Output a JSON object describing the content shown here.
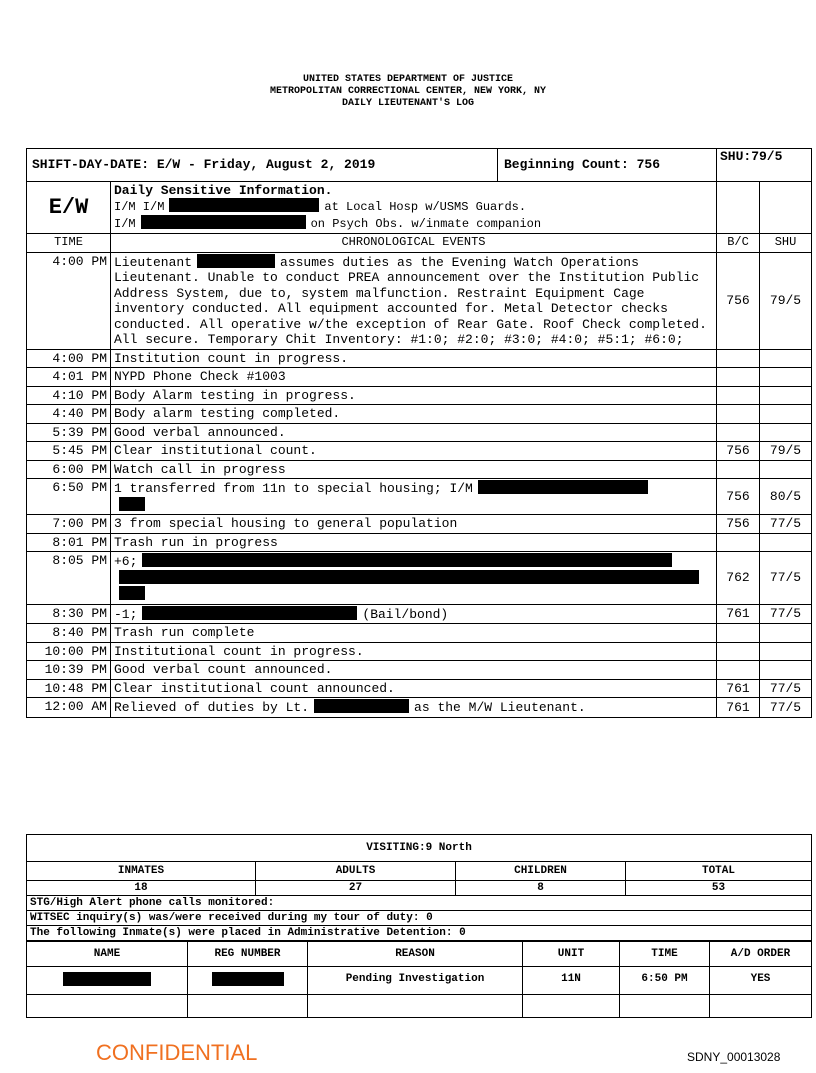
{
  "header": {
    "lines": [
      "UNITED STATES DEPARTMENT OF JUSTICE",
      "METROPOLITAN CORRECTIONAL CENTER, NEW YORK, NY",
      "DAILY LIEUTENANT'S LOG"
    ]
  },
  "log": {
    "shift_date": "SHIFT-DAY-DATE: E/W - Friday, August 2, 2019",
    "beginning_count": "Beginning Count: 756",
    "shu": "SHU:79/5",
    "sensitive": {
      "code": "E/W",
      "title": "Daily Sensitive Information.",
      "lines": [
        [
          "I/M I/M",
          "at Local Hosp w/USMS Guards."
        ],
        [
          "I/M",
          "on Psych Obs. w/inmate companion"
        ]
      ]
    },
    "columns": [
      "TIME",
      "CHRONOLOGICAL EVENTS",
      "B/C",
      "SHU"
    ],
    "entries": [
      {
        "time": "4:00 PM",
        "event": [
          "Lieutenant",
          "assumes duties as the Evening Watch Operations Lieutenant. Unable to conduct PREA announcement over the Institution Public Address System, due to, system malfunction. Restraint Equipment Cage inventory conducted. All equipment accounted for. Metal Detector checks conducted. All operative w/the exception of Rear Gate. Roof Check completed. All secure. Temporary Chit Inventory: #1:0; #2:0; #3:0; #4:0; #5:1; #6:0;"
        ],
        "bc": 756,
        "shu": "79/5"
      },
      {
        "time": "4:00 PM",
        "event": [
          "Institution count in progress."
        ]
      },
      {
        "time": "4:01 PM",
        "event": [
          "NYPD Phone Check #1003"
        ]
      },
      {
        "time": "4:10 PM",
        "event": [
          "Body Alarm testing in progress."
        ]
      },
      {
        "time": "4:40 PM",
        "event": [
          "Body alarm testing completed."
        ]
      },
      {
        "time": "5:39 PM",
        "event": [
          "Good verbal announced."
        ]
      },
      {
        "time": "5:45 PM",
        "event": [
          "Clear institutional count."
        ],
        "bc": 756,
        "shu": "79/5"
      },
      {
        "time": "6:00 PM",
        "event": [
          "Watch call in progress"
        ]
      },
      {
        "time": "6:50 PM",
        "event": [
          "1 transferred from 11n to special housing; I/M"
        ],
        "bc": 756,
        "shu": "80/5"
      },
      {
        "time": "7:00 PM",
        "event": [
          "3 from special housing to general population"
        ],
        "bc": 756,
        "shu": "77/5"
      },
      {
        "time": "8:01 PM",
        "event": [
          "Trash run in progress"
        ]
      },
      {
        "time": "8:05 PM",
        "event": [
          "+6;"
        ],
        "bc": 762,
        "shu": "77/5"
      },
      {
        "time": "8:30 PM",
        "event": [
          "-1;",
          "(Bail/bond)"
        ],
        "bc": 761,
        "shu": "77/5"
      },
      {
        "time": "8:40 PM",
        "event": [
          "Trash run complete"
        ]
      },
      {
        "time": "10:00 PM",
        "event": [
          "Institutional count in progress."
        ]
      },
      {
        "time": "10:39 PM",
        "event": [
          "Good verbal count announced."
        ]
      },
      {
        "time": "10:48 PM",
        "event": [
          "Clear institutional count announced."
        ],
        "bc": 761,
        "shu": "77/5"
      },
      {
        "time": "12:00 AM",
        "event": [
          "Relieved of duties by Lt.",
          "as the M/W Lieutenant."
        ],
        "bc": 761,
        "shu": "77/5"
      }
    ]
  },
  "visiting": {
    "title": "VISITING:9 North",
    "columns": [
      "INMATES",
      "ADULTS",
      "CHILDREN",
      "TOTAL"
    ],
    "values": [
      18,
      27,
      8,
      53
    ]
  },
  "notes": [
    "STG/High Alert phone calls monitored:",
    "WITSEC inquiry(s) was/were received during my tour of duty: 0",
    "The following Inmate(s) were placed in Administrative Detention: 0"
  ],
  "detention": {
    "columns": [
      "NAME",
      "REG NUMBER",
      "REASON",
      "UNIT",
      "TIME",
      "A/D ORDER"
    ],
    "row": {
      "reason": "Pending Investigation",
      "unit": "11N",
      "time": "6:50 PM",
      "order": "YES"
    }
  },
  "footer": {
    "confidential": "CONFIDENTIAL",
    "bates": "SDNY_00013028"
  }
}
